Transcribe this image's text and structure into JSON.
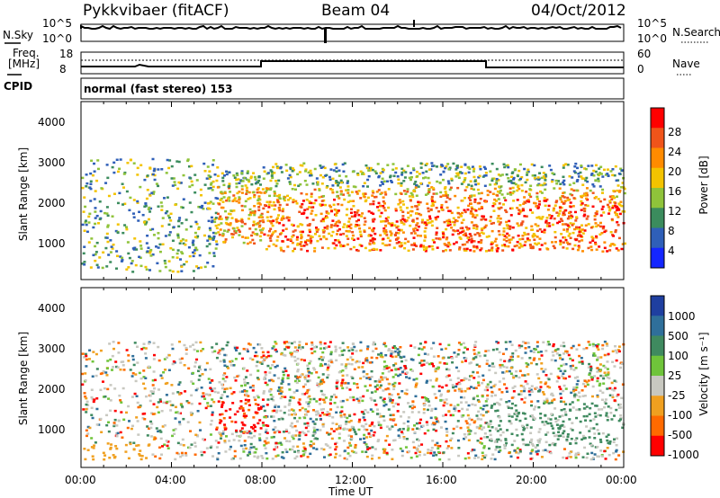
{
  "header": {
    "station": "Pykkvibaer (fitACF)",
    "beam": "Beam 04",
    "date": "04/Oct/2012"
  },
  "top_panels": {
    "nsky_label": "N.Sky",
    "nsky_ticks": [
      "10^5",
      "10^0"
    ],
    "nsearch_label": "N.Search",
    "nsearch_ticks": [
      "10^5",
      "10^0"
    ],
    "freq_label_1": "Freq.",
    "freq_label_2": "[MHz]",
    "freq_ticks": [
      "18",
      "8"
    ],
    "nave_label": "Nave",
    "nave_ticks": [
      "60",
      "0"
    ],
    "cpid_label": "CPID",
    "cpid_value": "normal (fast stereo) 153"
  },
  "chart_data": [
    {
      "type": "heatmap",
      "name": "power-panel",
      "ylabel": "Slant Range [km]",
      "ylim": [
        180,
        4600
      ],
      "yticks": [
        1000,
        2000,
        3000,
        4000
      ],
      "xlim": [
        0,
        24
      ],
      "colorbar_label": "Power [dB]",
      "colorbar_ticks": [
        "28",
        "24",
        "20",
        "16",
        "12",
        "8",
        "4"
      ],
      "colorbar_colors": [
        "#ff0000",
        "#f0541a",
        "#ff8b00",
        "#f3c300",
        "#8fc33a",
        "#3b8c5d",
        "#2f5fb8",
        "#1426ff"
      ]
    },
    {
      "type": "heatmap",
      "name": "velocity-panel",
      "ylabel": "Slant Range [km]",
      "ylim": [
        180,
        4600
      ],
      "yticks": [
        1000,
        2000,
        3000,
        4000
      ],
      "xlim": [
        0,
        24
      ],
      "xticks": [
        "00:00",
        "04:00",
        "08:00",
        "12:00",
        "16:00",
        "20:00",
        "00:00"
      ],
      "xlabel": "Time UT",
      "colorbar_label": "Velocity [m s⁻¹]",
      "colorbar_ticks": [
        "1000",
        "500",
        "100",
        "25",
        "-25",
        "-100",
        "-500",
        "-1000"
      ],
      "colorbar_colors": [
        "#1f3fa0",
        "#2f6f9a",
        "#3f8a5f",
        "#6fc43a",
        "#c8c8c0",
        "#f0a020",
        "#ff6a00",
        "#ff0000"
      ]
    }
  ]
}
